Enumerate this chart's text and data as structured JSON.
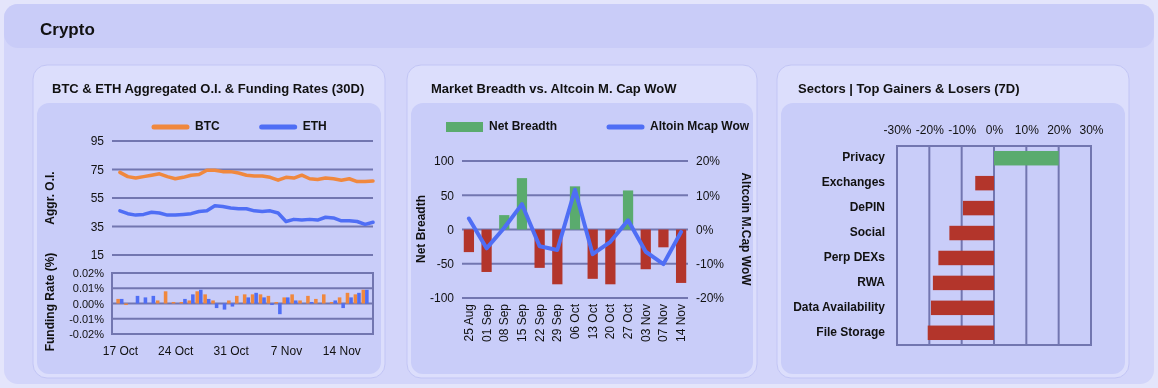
{
  "chart_data": [
    {
      "type": "line",
      "title": "BTC & ETH Aggregated O.I. & Funding Rates (30D)",
      "annotations": [
        "Crypto"
      ],
      "ylabel": "Aggr. O.I.",
      "x": [
        "--10-17",
        "--10-18",
        "--10-19",
        "--10-20",
        "--10-21",
        "--10-22",
        "--10-23",
        "--10-24",
        "--10-25",
        "--10-26",
        "--10-27",
        "--10-28",
        "--10-29",
        "--10-30",
        "--10-31",
        "--11-01",
        "--11-02",
        "--11-03",
        "--11-04",
        "--11-05",
        "--11-06",
        "--11-07",
        "--11-08",
        "--11-09",
        "--11-10",
        "--11-11",
        "--11-12",
        "--11-13",
        "--11-14",
        "--11-15",
        "--11-16",
        "--11-17",
        "--11-18"
      ],
      "series": [
        {
          "name": "BTC",
          "color": "#f0883e",
          "values": [
            73,
            70,
            69,
            70,
            71,
            72,
            70,
            68.5,
            69.5,
            71,
            71.5,
            74.5,
            74.5,
            73.5,
            73.5,
            72.5,
            71,
            70.5,
            70.5,
            69.5,
            67.5,
            69.5,
            69,
            71,
            68.5,
            68,
            69,
            68.5,
            67.5,
            68.5,
            66.5,
            66.5,
            67
          ]
        },
        {
          "name": "ETH",
          "color": "#4f6ef5",
          "values": [
            46,
            44,
            43,
            43.5,
            45,
            44.5,
            43,
            43,
            43.5,
            44,
            45.5,
            46,
            49.5,
            49,
            48,
            47.5,
            47.5,
            46,
            45.5,
            46,
            44.5,
            38.5,
            40,
            39.5,
            40,
            39.5,
            41.5,
            41,
            39,
            39,
            38.5,
            36.5,
            38
          ]
        }
      ],
      "xlim": [
        "--10-16",
        "--11-18"
      ],
      "ylim": [
        15,
        95
      ],
      "yticks": [
        15,
        35,
        55,
        75,
        95
      ],
      "grid": "y",
      "legend": "top",
      "tick_labels": "y"
    },
    {
      "type": "bar",
      "ylabel": "Funding Rate (%)",
      "x": [
        "--10-17",
        "--10-18",
        "--10-19",
        "--10-20",
        "--10-21",
        "--10-22",
        "--10-23",
        "--10-24",
        "--10-25",
        "--10-26",
        "--10-27",
        "--10-28",
        "--10-29",
        "--10-30",
        "--10-31",
        "--11-01",
        "--11-02",
        "--11-03",
        "--11-04",
        "--11-05",
        "--11-06",
        "--11-07",
        "--11-08",
        "--11-09",
        "--11-10",
        "--11-11",
        "--11-12",
        "--11-13",
        "--11-14",
        "--11-15",
        "--11-16",
        "--11-17"
      ],
      "series": [
        {
          "color": "#f0883e",
          "values": [
            0.003,
            -0.001,
            0,
            0,
            0,
            0.002,
            0.008,
            0.001,
            0.001,
            0.002,
            0.008,
            0.006,
            0.002,
            0,
            0.002,
            0.005,
            0.006,
            0.006,
            0.006,
            0.005,
            0.001,
            0.004,
            0.006,
            0.002,
            0.005,
            0.003,
            0.006,
            0.001,
            0.004,
            0.007,
            0.006,
            0.009
          ]
        },
        {
          "color": "#4f6ef5",
          "values": [
            0.003,
            0,
            0.005,
            0.004,
            0.005,
            0,
            0,
            0,
            0.003,
            0.006,
            0.009,
            0.003,
            -0.003,
            -0.004,
            -0.002,
            0,
            0.004,
            0.007,
            0.004,
            -0.001,
            -0.007,
            0.004,
            0.002,
            0,
            0.001,
            0,
            0,
            0.002,
            -0.003,
            0.004,
            0.007,
            0.009
          ]
        }
      ],
      "xlim": [
        "--10-16",
        "--11-18"
      ],
      "xticks": [
        {
          "value": "--10-17",
          "label": "17 Oct"
        },
        {
          "value": "--10-24",
          "label": "24 Oct"
        },
        {
          "value": "--10-31",
          "label": "31 Oct"
        },
        {
          "value": "--11-07",
          "label": "7 Nov"
        },
        {
          "value": "--11-14",
          "label": "14 Nov"
        }
      ],
      "ylim": [
        -0.02,
        0.02
      ],
      "yticks": [
        {
          "value": -0.02,
          "label": "-0.02%"
        },
        {
          "value": -0.01,
          "label": "-0.01%"
        },
        {
          "value": 0,
          "label": "0.00%"
        },
        {
          "value": 0.01,
          "label": "0.01%"
        },
        {
          "value": 0.02,
          "label": "0.02%"
        }
      ],
      "grid": "y"
    },
    {
      "type": "bar",
      "title": "Market Breadth vs. Altcoin M. Cap WoW",
      "ylabel": "Net Breadth",
      "y2label": "Altcoin M.Cap WoW",
      "categories": [
        "25 Aug",
        "01 Sep",
        "08 Sep",
        "15 Sep",
        "22 Sep",
        "29 Sep",
        "06 Oct",
        "13 Oct",
        "20 Oct",
        "27 Oct",
        "03 Nov",
        "07 Nov",
        "14 Nov"
      ],
      "series": [
        {
          "name": "Net Breadth",
          "color": "#5aab6e",
          "colors": [
            "#b3352b",
            "#b3352b",
            "#5aab6e",
            "#5aab6e",
            "#b3352b",
            "#b3352b",
            "#5aab6e",
            "#b3352b",
            "#b3352b",
            "#5aab6e",
            "#b3352b",
            "#b3352b",
            "#b3352b"
          ],
          "values": [
            -33,
            -62,
            21,
            75,
            -56,
            -80,
            63,
            -72,
            -80,
            57,
            -58,
            -26,
            -78
          ]
        },
        {
          "name": "Altoin Mcap Wow",
          "type": "line",
          "axis": "y2",
          "color": "#4f6ef5",
          "values": [
            3.2,
            -5.5,
            0.5,
            7.4,
            -4.9,
            -6,
            11.6,
            -7.2,
            -3.6,
            2.7,
            -6.5,
            -10.1,
            -0.7
          ]
        }
      ],
      "ylim": [
        -100,
        100
      ],
      "yticks": [
        -100,
        -50,
        0,
        50,
        100
      ],
      "y2lim": [
        -20,
        20
      ],
      "y2ticks": [
        {
          "value": -20,
          "label": "-20%"
        },
        {
          "value": -10,
          "label": "-10%"
        },
        {
          "value": 0,
          "label": "0%"
        },
        {
          "value": 10,
          "label": "10%"
        },
        {
          "value": 20,
          "label": "20%"
        }
      ],
      "grid": "y",
      "legend": "top"
    },
    {
      "type": "bar",
      "orientation": "horizontal",
      "title": "Sectors | Top Gainers & Losers (7D)",
      "categories": [
        "Privacy",
        "Exchanges",
        "DePIN",
        "Social",
        "Perp DEXs",
        "RWA",
        "Data Availability",
        "File Storage"
      ],
      "values": [
        20,
        -5.8,
        -9.6,
        -13.8,
        -17.2,
        -18.9,
        -19.5,
        -20.5
      ],
      "colors": [
        "#5aab6e",
        "#b3352b",
        "#b3352b",
        "#b3352b",
        "#b3352b",
        "#b3352b",
        "#b3352b",
        "#b3352b"
      ],
      "xlim": [
        -30,
        30
      ],
      "xticks": [
        {
          "value": -30,
          "label": "-30%"
        },
        {
          "value": -20,
          "label": "-20%"
        },
        {
          "value": -10,
          "label": "-10%"
        },
        {
          "value": 0,
          "label": "0%"
        },
        {
          "value": 10,
          "label": "10%"
        },
        {
          "value": 20,
          "label": "20%"
        },
        {
          "value": 30,
          "label": "30%"
        }
      ],
      "grid": "x"
    }
  ]
}
